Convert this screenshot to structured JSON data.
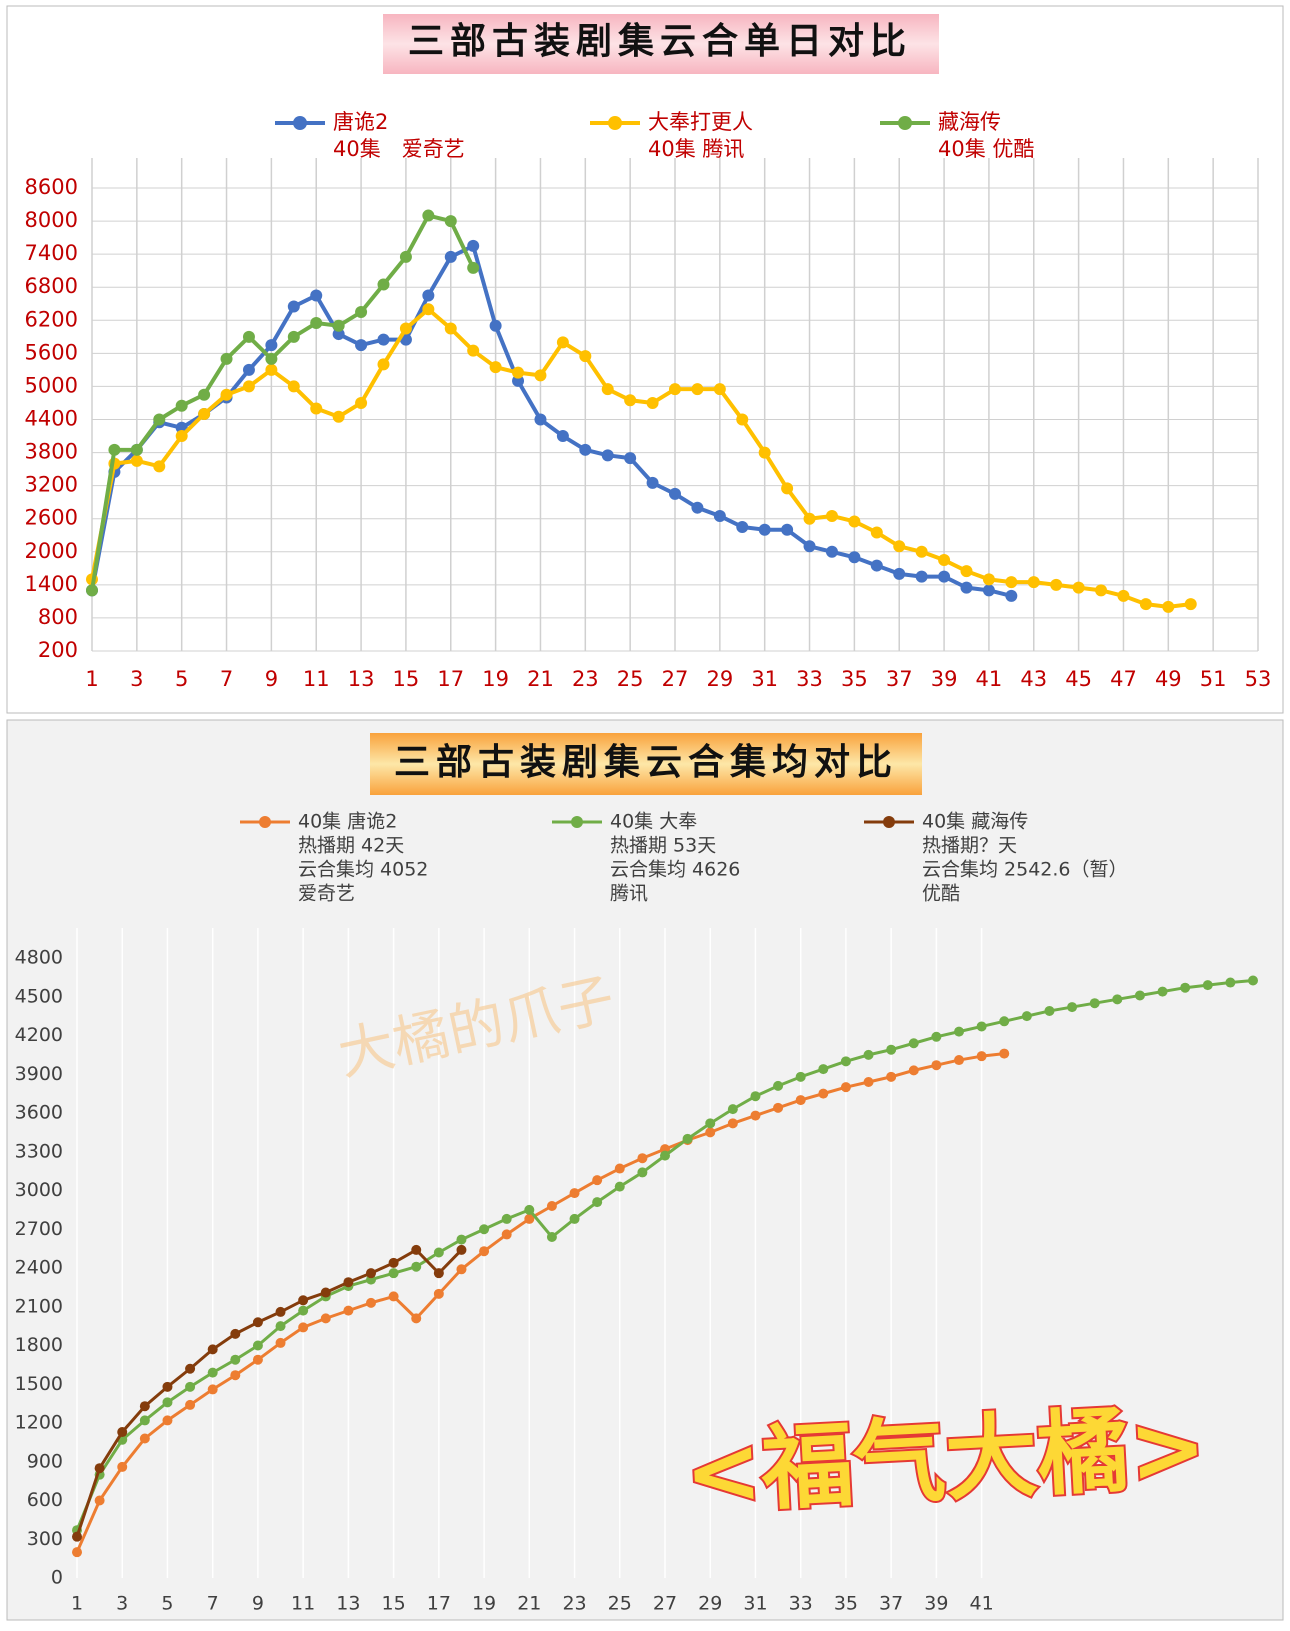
{
  "chart_data": [
    {
      "type": "line",
      "title": "三部古装剧集云合单日对比",
      "xlim": [
        1,
        53
      ],
      "xticks": [
        1,
        3,
        5,
        7,
        9,
        11,
        13,
        15,
        17,
        19,
        21,
        23,
        25,
        27,
        29,
        31,
        33,
        35,
        37,
        39,
        41,
        43,
        45,
        47,
        49,
        51,
        53
      ],
      "ylim": [
        200,
        8600
      ],
      "yticks": [
        200,
        800,
        1400,
        2000,
        2600,
        3200,
        3800,
        4400,
        5000,
        5600,
        6200,
        6800,
        7400,
        8000,
        8600
      ],
      "grid": true,
      "series": [
        {
          "name": "唐诡2",
          "notes": [
            "40集　爱奇艺"
          ],
          "color": "#4472c4",
          "x": [
            1,
            2,
            3,
            4,
            5,
            6,
            7,
            8,
            9,
            10,
            11,
            12,
            13,
            14,
            15,
            16,
            17,
            18,
            19,
            20,
            21,
            22,
            23,
            24,
            25,
            26,
            27,
            28,
            29,
            30,
            31,
            32,
            33,
            34,
            35,
            36,
            37,
            38,
            39,
            40,
            41,
            42
          ],
          "values": [
            1300,
            3450,
            3850,
            4350,
            4250,
            4500,
            4800,
            5300,
            5750,
            6450,
            6650,
            5950,
            5750,
            5850,
            5850,
            6650,
            7350,
            7550,
            6100,
            5100,
            4400,
            4100,
            3850,
            3750,
            3700,
            3250,
            3050,
            2800,
            2650,
            2450,
            2400,
            2400,
            2100,
            2000,
            1900,
            1750,
            1600,
            1550,
            1550,
            1350,
            1300,
            1200
          ]
        },
        {
          "name": "大奉打更人",
          "notes": [
            "40集  腾讯"
          ],
          "color": "#ffc000",
          "x": [
            1,
            2,
            3,
            4,
            5,
            6,
            7,
            8,
            9,
            10,
            11,
            12,
            13,
            14,
            15,
            16,
            17,
            18,
            19,
            20,
            21,
            22,
            23,
            24,
            25,
            26,
            27,
            28,
            29,
            30,
            31,
            32,
            33,
            34,
            35,
            36,
            37,
            38,
            39,
            40,
            41,
            42,
            43,
            44,
            45,
            46,
            47,
            48,
            49,
            50
          ],
          "values": [
            1500,
            3600,
            3650,
            3550,
            4100,
            4500,
            4850,
            5000,
            5300,
            5000,
            4600,
            4450,
            4700,
            5400,
            6050,
            6400,
            6050,
            5650,
            5350,
            5250,
            5200,
            5800,
            5550,
            4950,
            4750,
            4700,
            4950,
            4950,
            4950,
            4400,
            3800,
            3150,
            2600,
            2650,
            2550,
            2350,
            2100,
            2000,
            1850,
            1650,
            1500,
            1450,
            1450,
            1400,
            1350,
            1300,
            1200,
            1050,
            1000,
            1050
          ]
        },
        {
          "name": "藏海传",
          "notes": [
            "40集  优酷"
          ],
          "color": "#70ad47",
          "x": [
            1,
            2,
            3,
            4,
            5,
            6,
            7,
            8,
            9,
            10,
            11,
            12,
            13,
            14,
            15,
            16,
            17,
            18
          ],
          "values": [
            1300,
            3850,
            3850,
            4400,
            4650,
            4850,
            5500,
            5900,
            5500,
            5900,
            6150,
            6100,
            6350,
            6850,
            7350,
            8100,
            8000,
            7150
          ]
        }
      ]
    },
    {
      "type": "line",
      "title": "三部古装剧集云合集均对比",
      "xlim": [
        1,
        53
      ],
      "xticks": [
        1,
        3,
        5,
        7,
        9,
        11,
        13,
        15,
        17,
        19,
        21,
        23,
        25,
        27,
        29,
        31,
        33,
        35,
        37,
        39,
        41
      ],
      "ylim": [
        0,
        4800
      ],
      "yticks": [
        0,
        300,
        600,
        900,
        1200,
        1500,
        1800,
        2100,
        2400,
        2700,
        3000,
        3300,
        3600,
        3900,
        4200,
        4500,
        4800
      ],
      "grid": false,
      "series": [
        {
          "name": "40集  唐诡2",
          "notes": [
            "热播期  42天",
            "云合集均  4052",
            "爱奇艺"
          ],
          "color": "#ed7d31",
          "x": [
            1,
            2,
            3,
            4,
            5,
            6,
            7,
            8,
            9,
            10,
            11,
            12,
            13,
            14,
            15,
            16,
            17,
            18,
            19,
            20,
            21,
            22,
            23,
            24,
            25,
            26,
            27,
            28,
            29,
            30,
            31,
            32,
            33,
            34,
            35,
            36,
            37,
            38,
            39,
            40,
            41,
            42
          ],
          "values": [
            200,
            600,
            860,
            1080,
            1220,
            1340,
            1460,
            1570,
            1690,
            1820,
            1940,
            2010,
            2070,
            2130,
            2180,
            2010,
            2200,
            2390,
            2530,
            2660,
            2780,
            2880,
            2980,
            3080,
            3170,
            3250,
            3320,
            3390,
            3450,
            3520,
            3580,
            3640,
            3700,
            3750,
            3800,
            3840,
            3880,
            3930,
            3970,
            4010,
            4040,
            4060
          ]
        },
        {
          "name": "40集  大奉",
          "notes": [
            "热播期  53天",
            "云合集均  4626",
            "腾讯"
          ],
          "color": "#70ad47",
          "x": [
            1,
            2,
            3,
            4,
            5,
            6,
            7,
            8,
            9,
            10,
            11,
            12,
            13,
            14,
            15,
            16,
            17,
            18,
            19,
            20,
            21,
            22,
            23,
            24,
            25,
            26,
            27,
            28,
            29,
            30,
            31,
            32,
            33,
            34,
            35,
            36,
            37,
            38,
            39,
            40,
            41,
            42,
            43,
            44,
            45,
            46,
            47,
            48,
            49,
            50,
            51,
            52,
            53
          ],
          "values": [
            370,
            800,
            1070,
            1220,
            1360,
            1480,
            1590,
            1690,
            1800,
            1950,
            2070,
            2180,
            2260,
            2310,
            2360,
            2410,
            2520,
            2620,
            2700,
            2780,
            2850,
            2640,
            2780,
            2910,
            3030,
            3140,
            3270,
            3400,
            3520,
            3630,
            3730,
            3810,
            3880,
            3940,
            4000,
            4050,
            4090,
            4140,
            4190,
            4230,
            4270,
            4310,
            4350,
            4390,
            4420,
            4450,
            4480,
            4510,
            4540,
            4570,
            4590,
            4610,
            4626
          ]
        },
        {
          "name": "40集 藏海传",
          "notes": [
            "热播期？天",
            "云合集均 2542.6（暂）",
            "优酷"
          ],
          "color": "#843c0c",
          "x": [
            1,
            2,
            3,
            4,
            5,
            6,
            7,
            8,
            9,
            10,
            11,
            12,
            13,
            14,
            15,
            16,
            17,
            18
          ],
          "values": [
            320,
            850,
            1130,
            1330,
            1480,
            1620,
            1770,
            1890,
            1980,
            2060,
            2150,
            2210,
            2290,
            2360,
            2440,
            2540,
            2360,
            2540
          ]
        }
      ]
    }
  ],
  "watermarks": [
    "大橘的爪子",
    "<福气大橘>"
  ]
}
